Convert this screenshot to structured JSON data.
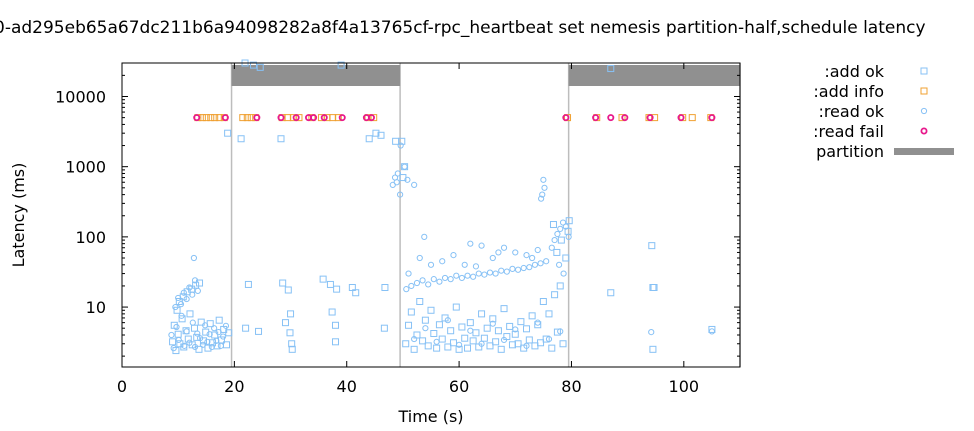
{
  "chart_data": {
    "type": "scatter",
    "title": "0-ad295eb65a67dc211b6a94098282a8f4a13765cf-rpc_heartbeat set nemesis partition-half,schedule latency",
    "xlabel": "Time (s)",
    "ylabel": "Latency (ms)",
    "xlim": [
      0,
      110
    ],
    "ylim": [
      1.4,
      30000
    ],
    "yscale": "log",
    "x_ticks": [
      0,
      20,
      40,
      60,
      80,
      100
    ],
    "y_ticks": [
      10,
      100,
      1000,
      10000
    ],
    "grid": false,
    "legend_position": "right",
    "series": [
      {
        "name": ":add ok",
        "marker": "square",
        "color": "#87c1f5",
        "points": [
          [
            9.0,
            3.2
          ],
          [
            9.3,
            5.5
          ],
          [
            9.6,
            2.4
          ],
          [
            10.0,
            4.1
          ],
          [
            10.3,
            3.0
          ],
          [
            10.7,
            6.8
          ],
          [
            11.0,
            2.7
          ],
          [
            11.4,
            4.6
          ],
          [
            11.8,
            3.5
          ],
          [
            12.1,
            8.0
          ],
          [
            12.5,
            2.9
          ],
          [
            12.9,
            5.0
          ],
          [
            13.3,
            3.7
          ],
          [
            13.7,
            2.5
          ],
          [
            14.1,
            6.1
          ],
          [
            14.5,
            3.3
          ],
          [
            14.9,
            4.4
          ],
          [
            15.3,
            2.6
          ],
          [
            15.7,
            5.8
          ],
          [
            16.1,
            3.1
          ],
          [
            16.5,
            4.0
          ],
          [
            16.9,
            2.8
          ],
          [
            17.3,
            6.5
          ],
          [
            17.7,
            3.4
          ],
          [
            18.1,
            4.8
          ],
          [
            18.6,
            2.9
          ],
          [
            19.0,
            4.3
          ],
          [
            9.8,
            9.0
          ],
          [
            10.2,
            12.0
          ],
          [
            10.9,
            14.0
          ],
          [
            11.6,
            16.5
          ],
          [
            12.4,
            18.0
          ],
          [
            13.1,
            20.5
          ],
          [
            13.8,
            22.0
          ],
          [
            18.8,
            3000
          ],
          [
            21.2,
            2500
          ],
          [
            21.9,
            30000
          ],
          [
            23.4,
            28000
          ],
          [
            24.6,
            26000
          ],
          [
            28.3,
            2500
          ],
          [
            39.0,
            28000
          ],
          [
            44.0,
            2500
          ],
          [
            45.2,
            3000
          ],
          [
            46.1,
            2800
          ],
          [
            48.7,
            2300
          ],
          [
            22.0,
            5.0
          ],
          [
            22.5,
            21.0
          ],
          [
            24.3,
            4.5
          ],
          [
            28.6,
            22.0
          ],
          [
            29.1,
            6.0
          ],
          [
            29.6,
            17.5
          ],
          [
            30.2,
            3.0
          ],
          [
            30.3,
            2.5
          ],
          [
            29.9,
            4.3
          ],
          [
            30.0,
            8.0
          ],
          [
            35.8,
            25.0
          ],
          [
            37.1,
            21.0
          ],
          [
            37.4,
            8.5
          ],
          [
            38.0,
            5.5
          ],
          [
            38.2,
            18.0
          ],
          [
            38.0,
            3.2
          ],
          [
            41.0,
            19.0
          ],
          [
            41.6,
            16.0
          ],
          [
            46.7,
            5.0
          ],
          [
            46.8,
            19.0
          ],
          [
            50.5,
            3.0
          ],
          [
            51.0,
            5.5
          ],
          [
            51.5,
            8.5
          ],
          [
            52.0,
            2.5
          ],
          [
            52.5,
            4.0
          ],
          [
            53.0,
            12.0
          ],
          [
            53.5,
            3.3
          ],
          [
            54.0,
            6.5
          ],
          [
            54.5,
            2.8
          ],
          [
            55.0,
            9.0
          ],
          [
            55.5,
            4.2
          ],
          [
            56.0,
            2.6
          ],
          [
            56.5,
            5.6
          ],
          [
            57.0,
            3.5
          ],
          [
            57.5,
            7.0
          ],
          [
            58.0,
            2.7
          ],
          [
            58.5,
            4.6
          ],
          [
            59.0,
            3.1
          ],
          [
            59.5,
            10.0
          ],
          [
            60.0,
            2.5
          ],
          [
            60.5,
            5.2
          ],
          [
            61.0,
            3.6
          ],
          [
            61.5,
            2.6
          ],
          [
            62.0,
            6.0
          ],
          [
            62.5,
            3.3
          ],
          [
            63.0,
            4.3
          ],
          [
            63.5,
            2.7
          ],
          [
            64.0,
            8.0
          ],
          [
            64.5,
            3.6
          ],
          [
            65.0,
            5.0
          ],
          [
            65.5,
            2.8
          ],
          [
            66.0,
            6.8
          ],
          [
            66.5,
            3.2
          ],
          [
            67.0,
            4.6
          ],
          [
            67.5,
            2.5
          ],
          [
            68.0,
            9.5
          ],
          [
            68.5,
            3.8
          ],
          [
            69.0,
            5.3
          ],
          [
            69.5,
            2.9
          ],
          [
            70.0,
            4.1
          ],
          [
            70.5,
            3.0
          ],
          [
            71.0,
            6.2
          ],
          [
            71.5,
            2.6
          ],
          [
            72.0,
            4.9
          ],
          [
            72.5,
            3.4
          ],
          [
            73.0,
            7.5
          ],
          [
            73.5,
            2.8
          ],
          [
            74.0,
            5.6
          ],
          [
            74.5,
            3.1
          ],
          [
            75.0,
            12.0
          ],
          [
            75.5,
            3.5
          ],
          [
            76.0,
            8.0
          ],
          [
            76.5,
            2.6
          ],
          [
            77.0,
            15.0
          ],
          [
            77.5,
            4.4
          ],
          [
            78.0,
            20.0
          ],
          [
            78.5,
            3.0
          ],
          [
            79.0,
            50.0
          ],
          [
            79.4,
            120.0
          ],
          [
            79.6,
            170.0
          ],
          [
            76.8,
            150.0
          ],
          [
            77.4,
            60.0
          ],
          [
            78.2,
            90.0
          ],
          [
            50.0,
            700
          ],
          [
            50.3,
            1000
          ],
          [
            49.8,
            2300
          ],
          [
            87.0,
            16.0
          ],
          [
            87.0,
            25000
          ],
          [
            94.5,
            2.5
          ],
          [
            94.5,
            19.0
          ],
          [
            94.7,
            19.0
          ],
          [
            94.3,
            75.0
          ],
          [
            105.0,
            4.8
          ]
        ]
      },
      {
        "name": ":add info",
        "marker": "square",
        "color": "#f0a030",
        "points": [
          [
            13.5,
            5000
          ],
          [
            14.3,
            5000
          ],
          [
            15.0,
            5000
          ],
          [
            15.8,
            5000
          ],
          [
            16.5,
            5000
          ],
          [
            17.3,
            5000
          ],
          [
            18.2,
            5000
          ],
          [
            21.5,
            5000
          ],
          [
            22.3,
            5000
          ],
          [
            23.0,
            5000
          ],
          [
            23.8,
            5000
          ],
          [
            28.5,
            5000
          ],
          [
            29.5,
            5000
          ],
          [
            30.5,
            5000
          ],
          [
            31.5,
            5000
          ],
          [
            33.8,
            5000
          ],
          [
            35.5,
            5000
          ],
          [
            36.5,
            5000
          ],
          [
            37.5,
            5000
          ],
          [
            38.5,
            5000
          ],
          [
            43.8,
            5000
          ],
          [
            44.8,
            5000
          ],
          [
            79.3,
            5000
          ],
          [
            84.5,
            5000
          ],
          [
            89.0,
            5000
          ],
          [
            93.8,
            5000
          ],
          [
            94.8,
            5000
          ],
          [
            99.8,
            5000
          ],
          [
            101.5,
            5000
          ],
          [
            104.8,
            5000
          ]
        ]
      },
      {
        "name": ":read ok",
        "marker": "circle",
        "color": "#87c1f5",
        "points": [
          [
            8.8,
            4.0
          ],
          [
            9.2,
            2.6
          ],
          [
            9.7,
            5.2
          ],
          [
            10.1,
            3.4
          ],
          [
            10.6,
            7.5
          ],
          [
            11.1,
            2.8
          ],
          [
            11.5,
            4.5
          ],
          [
            12.0,
            3.1
          ],
          [
            12.6,
            6.0
          ],
          [
            13.0,
            2.7
          ],
          [
            13.4,
            4.2
          ],
          [
            13.9,
            3.6
          ],
          [
            14.4,
            2.9
          ],
          [
            14.8,
            5.5
          ],
          [
            15.2,
            3.2
          ],
          [
            15.6,
            4.1
          ],
          [
            16.0,
            2.7
          ],
          [
            16.4,
            5.0
          ],
          [
            16.8,
            3.3
          ],
          [
            17.2,
            4.4
          ],
          [
            17.6,
            2.8
          ],
          [
            18.0,
            3.8
          ],
          [
            18.5,
            5.4
          ],
          [
            9.5,
            10.0
          ],
          [
            10.0,
            13.5
          ],
          [
            10.5,
            11.0
          ],
          [
            11.0,
            16.0
          ],
          [
            11.5,
            13.0
          ],
          [
            12.0,
            19.0
          ],
          [
            12.5,
            15.0
          ],
          [
            13.0,
            24.0
          ],
          [
            13.5,
            17.0
          ],
          [
            12.8,
            50.0
          ],
          [
            48.6,
            700
          ],
          [
            48.9,
            600
          ],
          [
            49.1,
            800
          ],
          [
            49.5,
            400
          ],
          [
            50.3,
            1000
          ],
          [
            50.8,
            650
          ],
          [
            52.0,
            550
          ],
          [
            48.2,
            550
          ],
          [
            49.6,
            2000
          ],
          [
            50.6,
            18
          ],
          [
            51.5,
            20
          ],
          [
            52.5,
            22
          ],
          [
            53.5,
            24
          ],
          [
            54.5,
            21
          ],
          [
            55.5,
            25
          ],
          [
            56.5,
            23
          ],
          [
            57.5,
            26
          ],
          [
            58.5,
            25
          ],
          [
            59.5,
            28
          ],
          [
            60.5,
            26
          ],
          [
            61.5,
            28
          ],
          [
            62.5,
            27
          ],
          [
            63.5,
            30
          ],
          [
            64.5,
            29
          ],
          [
            65.5,
            31
          ],
          [
            66.5,
            30
          ],
          [
            67.5,
            33
          ],
          [
            68.5,
            32
          ],
          [
            69.5,
            35
          ],
          [
            70.5,
            34
          ],
          [
            71.5,
            36
          ],
          [
            72.5,
            37
          ],
          [
            73.5,
            40
          ],
          [
            74.5,
            42
          ],
          [
            75.5,
            45
          ],
          [
            51.0,
            30
          ],
          [
            53.0,
            50
          ],
          [
            55.0,
            40
          ],
          [
            57.0,
            45
          ],
          [
            59.0,
            55
          ],
          [
            61.0,
            40
          ],
          [
            63.0,
            38
          ],
          [
            66.0,
            50
          ],
          [
            68.0,
            70
          ],
          [
            70.0,
            60
          ],
          [
            72.0,
            55
          ],
          [
            74.0,
            65
          ],
          [
            53.8,
            100
          ],
          [
            62.0,
            80
          ],
          [
            64.0,
            75
          ],
          [
            67.0,
            60
          ],
          [
            73.0,
            50
          ],
          [
            74.8,
            400
          ],
          [
            75.0,
            650
          ],
          [
            75.2,
            500
          ],
          [
            74.6,
            350
          ],
          [
            52.0,
            3.5
          ],
          [
            54.0,
            5.0
          ],
          [
            56.0,
            3.2
          ],
          [
            58.0,
            6.5
          ],
          [
            60.0,
            2.9
          ],
          [
            62.0,
            4.6
          ],
          [
            64.0,
            3.0
          ],
          [
            66.0,
            5.8
          ],
          [
            68.0,
            3.4
          ],
          [
            70.0,
            4.8
          ],
          [
            72.0,
            2.8
          ],
          [
            74.0,
            6.0
          ],
          [
            76.0,
            3.5
          ],
          [
            78.0,
            4.5
          ],
          [
            76.5,
            70
          ],
          [
            77.0,
            90
          ],
          [
            77.5,
            110
          ],
          [
            78.0,
            130
          ],
          [
            78.5,
            160
          ],
          [
            79.0,
            140
          ],
          [
            79.5,
            100
          ],
          [
            77.8,
            40
          ],
          [
            78.6,
            30
          ],
          [
            94.2,
            4.4
          ],
          [
            105.0,
            4.5
          ]
        ]
      },
      {
        "name": ":read fail",
        "marker": "circle",
        "color": "#e8198c",
        "points": [
          [
            13.3,
            5000
          ],
          [
            18.4,
            5000
          ],
          [
            24.0,
            5000
          ],
          [
            28.3,
            5000
          ],
          [
            31.0,
            5000
          ],
          [
            33.2,
            5000
          ],
          [
            34.1,
            5000
          ],
          [
            36.0,
            5000
          ],
          [
            39.2,
            5000
          ],
          [
            43.5,
            5000
          ],
          [
            44.4,
            5000
          ],
          [
            79.0,
            5000
          ],
          [
            84.3,
            5000
          ],
          [
            87.0,
            5000
          ],
          [
            89.5,
            5000
          ],
          [
            94.0,
            5000
          ],
          [
            99.5,
            5000
          ],
          [
            105.0,
            5000
          ]
        ]
      }
    ],
    "partitions": {
      "name": "partition",
      "color": "#909090",
      "intervals": [
        [
          19.5,
          49.5
        ],
        [
          79.5,
          110
        ]
      ]
    },
    "legend": [
      {
        "label": ":add ok",
        "marker": "square",
        "color": "#87c1f5"
      },
      {
        "label": ":add info",
        "marker": "square",
        "color": "#f0a030"
      },
      {
        "label": ":read ok",
        "marker": "circle",
        "color": "#87c1f5"
      },
      {
        "label": ":read fail",
        "marker": "circle",
        "color": "#e8198c"
      },
      {
        "label": "partition",
        "marker": "bar",
        "color": "#909090"
      }
    ]
  }
}
